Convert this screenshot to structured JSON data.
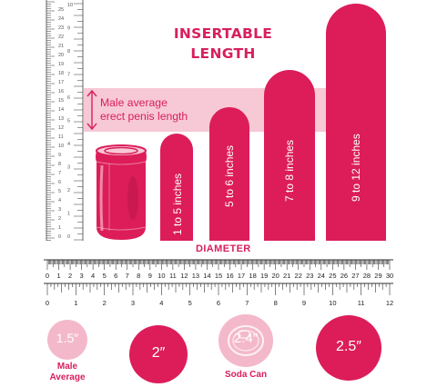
{
  "title_line1": "INSERTABLE",
  "title_line2": "LENGTH",
  "average_band": {
    "line1": "Male average",
    "line2": "erect penis length",
    "range_inches": [
      5,
      7
    ]
  },
  "bars": [
    {
      "label": "1 to 5 inches",
      "max_inches": 5
    },
    {
      "label": "5 to 6 inches",
      "max_inches": 6
    },
    {
      "label": "7 to 8 inches",
      "max_inches": 8
    },
    {
      "label": "9 to 12 inches",
      "max_inches": 12
    }
  ],
  "diameter_label": "DIAMETER",
  "cm_ticks": [
    "0",
    "1",
    "2",
    "3",
    "4",
    "5",
    "6",
    "7",
    "8",
    "9",
    "10",
    "11",
    "12",
    "13",
    "14",
    "15",
    "16",
    "17",
    "18",
    "19",
    "20",
    "21",
    "22",
    "23",
    "24",
    "25",
    "26",
    "27",
    "28",
    "29",
    "30"
  ],
  "inch_ticks": [
    "0",
    "1",
    "2",
    "3",
    "4",
    "5",
    "6",
    "7",
    "8",
    "9",
    "10",
    "11",
    "12"
  ],
  "circles": [
    {
      "value": "1.5″",
      "caption1": "Male",
      "caption2": "Average"
    },
    {
      "value": "2″",
      "caption1": "",
      "caption2": ""
    },
    {
      "value": "2.4″",
      "caption1": "Soda Can",
      "caption2": ""
    },
    {
      "value": "2.5″",
      "caption1": "",
      "caption2": ""
    }
  ],
  "colors": {
    "accent": "#dc1d5a",
    "light": "#f7c8d6",
    "pale": "#f4b8cb"
  }
}
